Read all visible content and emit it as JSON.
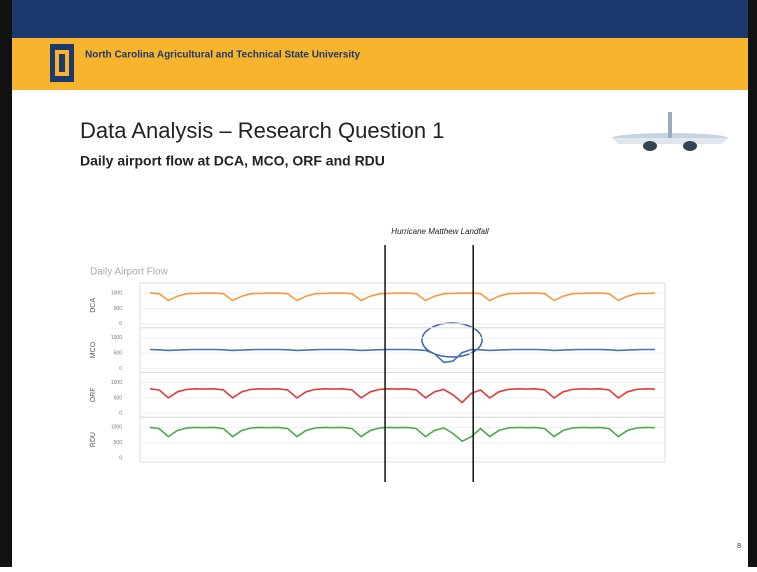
{
  "header": {
    "university": "North Carolina Agricultural and Technical State University"
  },
  "slide": {
    "title": "Data Analysis – Research Question 1",
    "subtitle": "Daily airport flow at DCA, MCO, ORF and RDU",
    "page_number": "8"
  },
  "chart_data": {
    "type": "line",
    "title": "Daily Airport Flow",
    "annotation": "Hurricane Matthew Landfall",
    "event_markers": [
      25.6,
      35.2
    ],
    "ylim": [
      0,
      1200
    ],
    "yticks": [
      0,
      500,
      1000
    ],
    "series": [
      {
        "name": "DCA",
        "color": "#f39a3a",
        "values": [
          1000,
          980,
          760,
          900,
          980,
          990,
          1000,
          1000,
          980,
          760,
          900,
          980,
          990,
          1000,
          1000,
          980,
          760,
          900,
          980,
          990,
          1000,
          1000,
          980,
          760,
          900,
          980,
          990,
          1000,
          1000,
          980,
          760,
          900,
          980,
          990,
          1000,
          1000,
          980,
          760,
          900,
          980,
          990,
          1000,
          1000,
          980,
          760,
          900,
          980,
          990,
          1000,
          1000,
          980,
          760,
          900,
          980,
          990,
          1000
        ]
      },
      {
        "name": "MCO",
        "color": "#4a72b8",
        "values": [
          620,
          610,
          590,
          600,
          615,
          620,
          620,
          620,
          610,
          590,
          600,
          615,
          620,
          620,
          620,
          610,
          590,
          600,
          615,
          620,
          620,
          620,
          610,
          590,
          600,
          615,
          620,
          620,
          620,
          610,
          590,
          480,
          200,
          240,
          520,
          620,
          610,
          590,
          600,
          615,
          620,
          620,
          620,
          610,
          590,
          600,
          615,
          620,
          620,
          620,
          610,
          590,
          600,
          615,
          620,
          620
        ]
      },
      {
        "name": "ORF",
        "color": "#e23b3b",
        "values": [
          800,
          760,
          500,
          700,
          780,
          800,
          790,
          800,
          760,
          500,
          700,
          780,
          800,
          790,
          800,
          760,
          500,
          700,
          780,
          800,
          790,
          800,
          760,
          500,
          700,
          780,
          800,
          790,
          800,
          760,
          500,
          700,
          780,
          600,
          350,
          650,
          760,
          500,
          700,
          780,
          800,
          790,
          800,
          760,
          500,
          700,
          780,
          800,
          790,
          800,
          760,
          500,
          700,
          780,
          800,
          790
        ]
      },
      {
        "name": "RDU",
        "color": "#4caa48",
        "values": [
          1000,
          960,
          700,
          900,
          980,
          1000,
          990,
          1000,
          960,
          700,
          900,
          980,
          1000,
          990,
          1000,
          960,
          700,
          900,
          980,
          1000,
          990,
          1000,
          960,
          700,
          900,
          980,
          1000,
          990,
          1000,
          960,
          700,
          900,
          980,
          800,
          550,
          700,
          960,
          700,
          900,
          980,
          1000,
          990,
          1000,
          960,
          700,
          900,
          980,
          1000,
          990,
          1000,
          960,
          700,
          900,
          980,
          1000,
          990
        ]
      }
    ]
  }
}
